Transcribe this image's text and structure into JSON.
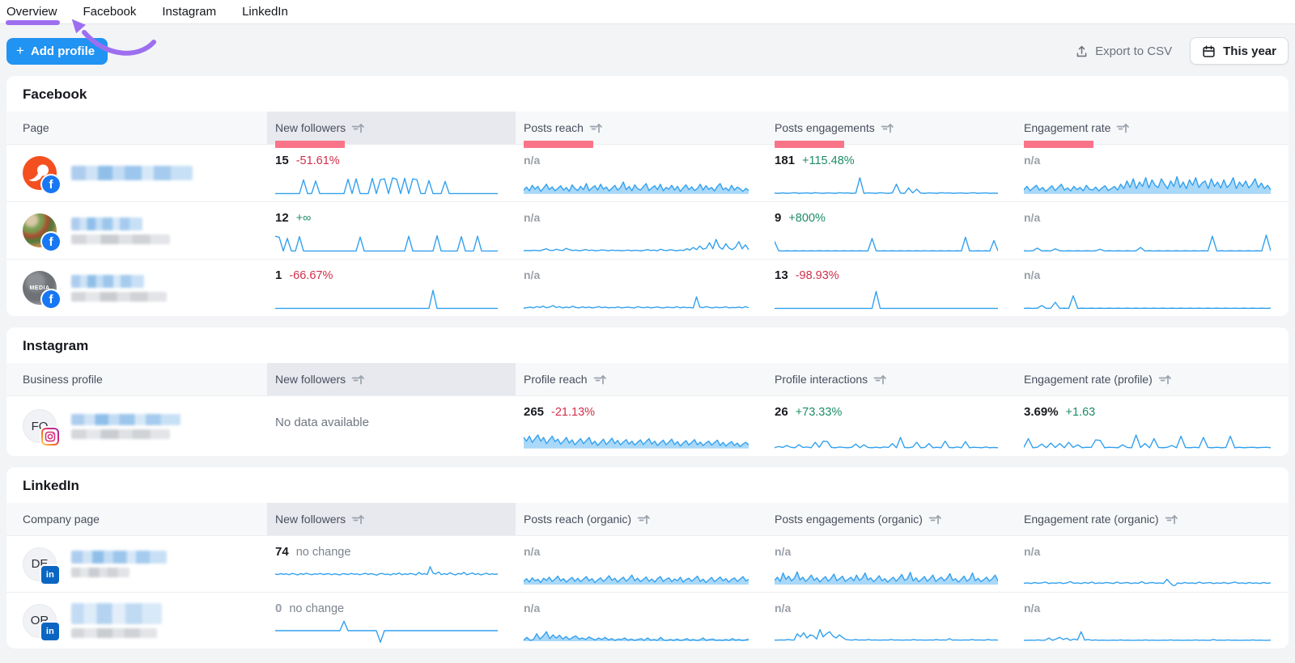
{
  "tabs": [
    {
      "label": "Overview"
    },
    {
      "label": "Facebook"
    },
    {
      "label": "Instagram"
    },
    {
      "label": "LinkedIn"
    }
  ],
  "annotation": {
    "color": "#9d6ff0",
    "target": "Overview"
  },
  "toolbar": {
    "plus": "+",
    "add_profile_label": "Add profile",
    "export_label": "Export to CSV",
    "period_label": "This year"
  },
  "colors": {
    "spark": "#33a1ef",
    "spark_fill": "rgba(51,161,239,0.42)",
    "positive": "#1d8c66",
    "negative": "#d12e4b",
    "muted": "#7d838d",
    "highlight_bar": "#fa7489",
    "accent_blue": "#2193f2"
  },
  "sections": [
    {
      "title": "Facebook",
      "entity_header": "Page",
      "selected_column": "New followers",
      "columns": [
        {
          "label": "New followers"
        },
        {
          "label": "Posts reach"
        },
        {
          "label": "Posts engagements"
        },
        {
          "label": "Engagement rate"
        }
      ],
      "rows": [
        {
          "metrics": [
            {
              "value": "15",
              "delta": "-51.61%"
            },
            {
              "value": "n/a",
              "delta": ""
            },
            {
              "value": "181",
              "delta": "+115.48%"
            },
            {
              "value": "n/a",
              "delta": ""
            }
          ]
        },
        {
          "metrics": [
            {
              "value": "12",
              "delta": "+∞"
            },
            {
              "value": "n/a",
              "delta": ""
            },
            {
              "value": "9",
              "delta": "+800%"
            },
            {
              "value": "n/a",
              "delta": ""
            }
          ]
        },
        {
          "metrics": [
            {
              "value": "1",
              "delta": "-66.67%"
            },
            {
              "value": "n/a",
              "delta": ""
            },
            {
              "value": "13",
              "delta": "-98.93%"
            },
            {
              "value": "n/a",
              "delta": ""
            }
          ]
        }
      ]
    },
    {
      "title": "Instagram",
      "entity_header": "Business profile",
      "selected_column": "New followers",
      "columns": [
        {
          "label": "New followers"
        },
        {
          "label": "Profile reach"
        },
        {
          "label": "Profile interactions"
        },
        {
          "label": "Engagement rate (profile)"
        }
      ],
      "rows": [
        {
          "metrics": [
            {
              "value": "No data available",
              "delta": ""
            },
            {
              "value": "265",
              "delta": "-21.13%"
            },
            {
              "value": "26",
              "delta": "+73.33%"
            },
            {
              "value": "3.69%",
              "delta": "+1.63"
            }
          ]
        }
      ]
    },
    {
      "title": "LinkedIn",
      "entity_header": "Company page",
      "selected_column": "New followers",
      "columns": [
        {
          "label": "New followers"
        },
        {
          "label": "Posts reach (organic)"
        },
        {
          "label": "Posts engagements (organic)"
        },
        {
          "label": "Engagement rate (organic)"
        }
      ],
      "rows": [
        {
          "metrics": [
            {
              "value": "74",
              "delta": "no change"
            },
            {
              "value": "n/a",
              "delta": ""
            },
            {
              "value": "n/a",
              "delta": ""
            },
            {
              "value": "n/a",
              "delta": ""
            }
          ]
        },
        {
          "metrics": [
            {
              "value": "0",
              "delta": "no change"
            },
            {
              "value": "n/a",
              "delta": ""
            },
            {
              "value": "n/a",
              "delta": ""
            },
            {
              "value": "n/a",
              "delta": ""
            }
          ]
        }
      ]
    }
  ],
  "sparks": {
    "fb1_nf": [
      2,
      2,
      2,
      2,
      2,
      2,
      2,
      65,
      2,
      2,
      60,
      2,
      2,
      2,
      2,
      2,
      2,
      2,
      68,
      2,
      70,
      2,
      2,
      2,
      72,
      2,
      66,
      70,
      2,
      74,
      68,
      2,
      72,
      2,
      70,
      66,
      2,
      2,
      62,
      2,
      2,
      2,
      58,
      2,
      2,
      2,
      2,
      2,
      2,
      2,
      2,
      2,
      2,
      2,
      2,
      2
    ],
    "fb1_reach": [
      18,
      32,
      15,
      40,
      22,
      35,
      12,
      28,
      45,
      20,
      33,
      15,
      25,
      38,
      18,
      30,
      12,
      42,
      25,
      16,
      35,
      20,
      48,
      15,
      28,
      38,
      18,
      45,
      22,
      32,
      14,
      26,
      40,
      18,
      30,
      55,
      20,
      35,
      15,
      42,
      25,
      18,
      33,
      48,
      16,
      28,
      38,
      20,
      45,
      15,
      30,
      22,
      40,
      18,
      35,
      12,
      28,
      42,
      20,
      33,
      16,
      25,
      45,
      18,
      38,
      22,
      30,
      14,
      35,
      48,
      20,
      28,
      15,
      40,
      18,
      32,
      24,
      12,
      26,
      16
    ],
    "fb1_eng": [
      4,
      3,
      5,
      3,
      4,
      6,
      3,
      4,
      5,
      3,
      6,
      4,
      3,
      5,
      4,
      3,
      6,
      4,
      5,
      3,
      4,
      75,
      3,
      5,
      4,
      3,
      6,
      4,
      3,
      5,
      45,
      4,
      3,
      28,
      5,
      22,
      4,
      3,
      5,
      4,
      3,
      6,
      4,
      5,
      3,
      4,
      5,
      3,
      4,
      6,
      3,
      4,
      5,
      3,
      4,
      3
    ],
    "fb1_rate": [
      20,
      35,
      15,
      28,
      40,
      18,
      30,
      12,
      25,
      38,
      16,
      30,
      45,
      18,
      28,
      14,
      35,
      20,
      30,
      15,
      40,
      22,
      18,
      32,
      14,
      28,
      38,
      16,
      25,
      35,
      18,
      45,
      25,
      60,
      30,
      70,
      25,
      55,
      35,
      75,
      28,
      65,
      40,
      30,
      70,
      45,
      25,
      60,
      35,
      80,
      30,
      55,
      25,
      65,
      40,
      75,
      30,
      50,
      60,
      25,
      70,
      35,
      55,
      28,
      65,
      30,
      45,
      75,
      25,
      55,
      35,
      60,
      28,
      45,
      70,
      30,
      50,
      25,
      40,
      20
    ],
    "fb2_nf": [
      70,
      65,
      2,
      60,
      2,
      2,
      68,
      2,
      2,
      2,
      2,
      2,
      2,
      2,
      2,
      2,
      2,
      2,
      2,
      2,
      2,
      66,
      2,
      2,
      2,
      2,
      2,
      2,
      2,
      2,
      2,
      2,
      2,
      70,
      2,
      2,
      2,
      2,
      2,
      2,
      72,
      2,
      2,
      2,
      2,
      2,
      68,
      2,
      2,
      2,
      70,
      2,
      2,
      2,
      2,
      2
    ],
    "fb2_reach": [
      3,
      4,
      3,
      5,
      4,
      3,
      8,
      12,
      5,
      4,
      10,
      6,
      4,
      14,
      8,
      4,
      6,
      3,
      5,
      9,
      4,
      6,
      3,
      4,
      7,
      5,
      3,
      6,
      4,
      5,
      3,
      4,
      6,
      3,
      5,
      4,
      3,
      5,
      8,
      4,
      6,
      3,
      10,
      5,
      4,
      8,
      5,
      3,
      6,
      4,
      12,
      6,
      18,
      8,
      25,
      10,
      15,
      40,
      12,
      55,
      20,
      10,
      35,
      15,
      8,
      20,
      45,
      12,
      30,
      8
    ],
    "fb2_eng": [
      45,
      3,
      2,
      3,
      2,
      3,
      2,
      3,
      2,
      3,
      2,
      3,
      2,
      3,
      2,
      3,
      2,
      3,
      2,
      3,
      2,
      3,
      2,
      3,
      60,
      3,
      2,
      3,
      2,
      3,
      2,
      3,
      2,
      3,
      2,
      3,
      2,
      3,
      2,
      3,
      2,
      3,
      2,
      3,
      2,
      3,
      2,
      65,
      3,
      2,
      3,
      2,
      3,
      2,
      50,
      3
    ],
    "fb2_rate": [
      3,
      2,
      3,
      15,
      2,
      3,
      2,
      12,
      3,
      2,
      3,
      2,
      3,
      2,
      3,
      2,
      3,
      10,
      2,
      3,
      2,
      3,
      2,
      3,
      2,
      3,
      18,
      2,
      3,
      2,
      3,
      2,
      3,
      2,
      3,
      2,
      3,
      2,
      3,
      2,
      3,
      2,
      70,
      2,
      3,
      2,
      3,
      2,
      3,
      2,
      3,
      2,
      3,
      2,
      75,
      3
    ],
    "fb3_nf": [
      2,
      2,
      2,
      2,
      2,
      2,
      2,
      2,
      2,
      2,
      2,
      2,
      2,
      2,
      2,
      2,
      2,
      2,
      2,
      2,
      2,
      2,
      2,
      2,
      2,
      2,
      2,
      2,
      2,
      2,
      2,
      2,
      2,
      2,
      2,
      2,
      2,
      2,
      2,
      85,
      2,
      2,
      2,
      2,
      2,
      2,
      2,
      2,
      2,
      2,
      2,
      2,
      2,
      2,
      2,
      2
    ],
    "fb3_reach": [
      3,
      5,
      8,
      4,
      10,
      6,
      12,
      5,
      8,
      15,
      6,
      10,
      4,
      8,
      5,
      12,
      6,
      4,
      9,
      5,
      8,
      4,
      6,
      10,
      5,
      8,
      4,
      6,
      5,
      9,
      4,
      6,
      8,
      5,
      4,
      10,
      6,
      5,
      8,
      4,
      6,
      9,
      5,
      4,
      8,
      6,
      5,
      10,
      4,
      8,
      5,
      6,
      4,
      55,
      8,
      5,
      10,
      6,
      4,
      8,
      5,
      6,
      9,
      4,
      6,
      5,
      8,
      4,
      10,
      5
    ],
    "fb3_eng": [
      2,
      2,
      2,
      2,
      2,
      2,
      2,
      2,
      2,
      2,
      2,
      2,
      2,
      2,
      2,
      2,
      2,
      2,
      2,
      2,
      2,
      2,
      2,
      2,
      2,
      80,
      2,
      2,
      2,
      2,
      2,
      2,
      2,
      2,
      2,
      2,
      2,
      2,
      2,
      2,
      2,
      2,
      2,
      2,
      2,
      2,
      2,
      2,
      2,
      2,
      2,
      2,
      2,
      2,
      2,
      2
    ],
    "fb3_rate": [
      2,
      3,
      2,
      3,
      15,
      2,
      3,
      30,
      2,
      3,
      2,
      60,
      2,
      3,
      2,
      3,
      2,
      3,
      2,
      3,
      2,
      3,
      2,
      3,
      2,
      3,
      2,
      3,
      2,
      3,
      2,
      3,
      2,
      3,
      2,
      3,
      2,
      3,
      2,
      3,
      2,
      3,
      2,
      3,
      2,
      3,
      2,
      3,
      2,
      3,
      2,
      3,
      2,
      3,
      2,
      3
    ],
    "ig_reach": [
      45,
      30,
      50,
      25,
      40,
      55,
      30,
      45,
      20,
      35,
      50,
      28,
      38,
      18,
      30,
      45,
      22,
      35,
      15,
      28,
      40,
      20,
      32,
      45,
      18,
      30,
      12,
      25,
      38,
      16,
      28,
      42,
      20,
      33,
      15,
      26,
      36,
      18,
      30,
      14,
      25,
      35,
      16,
      28,
      40,
      18,
      30,
      12,
      24,
      34,
      15,
      26,
      38,
      16,
      28,
      10,
      22,
      32,
      14,
      25,
      36,
      15,
      26,
      12,
      22,
      30,
      14,
      24,
      34,
      12,
      25,
      10,
      20,
      28,
      12,
      22,
      8,
      18,
      25,
      15
    ],
    "ig_inter": [
      3,
      8,
      4,
      12,
      5,
      3,
      15,
      4,
      6,
      3,
      25,
      5,
      30,
      28,
      4,
      3,
      6,
      4,
      3,
      5,
      18,
      3,
      15,
      4,
      3,
      5,
      3,
      6,
      4,
      20,
      3,
      45,
      4,
      3,
      6,
      25,
      3,
      4,
      20,
      3,
      5,
      3,
      30,
      4,
      3,
      6,
      3,
      28,
      3,
      5,
      4,
      3,
      6,
      3,
      4,
      3
    ],
    "ig_rate": [
      5,
      40,
      3,
      5,
      18,
      3,
      22,
      4,
      20,
      3,
      25,
      4,
      15,
      3,
      5,
      4,
      35,
      33,
      3,
      5,
      4,
      3,
      15,
      4,
      3,
      55,
      4,
      20,
      3,
      40,
      4,
      3,
      5,
      12,
      3,
      50,
      4,
      3,
      5,
      3,
      45,
      4,
      3,
      5,
      3,
      4,
      50,
      3,
      5,
      3,
      4,
      5,
      3,
      4,
      5,
      3
    ],
    "li1_nf": [
      50,
      48,
      52,
      49,
      51,
      47,
      53,
      50,
      46,
      52,
      48,
      54,
      50,
      47,
      51,
      49,
      53,
      48,
      50,
      52,
      47,
      51,
      49,
      46,
      52,
      50,
      48,
      53,
      49,
      51,
      47,
      50,
      54,
      48,
      52,
      49,
      45,
      51,
      53,
      48,
      50,
      46,
      52,
      49,
      55,
      47,
      51,
      48,
      53,
      50,
      46,
      58,
      49,
      52,
      48,
      85,
      55,
      50,
      60,
      47,
      52,
      48,
      56,
      50,
      46,
      53,
      49,
      58,
      47,
      51,
      55,
      48,
      52,
      46,
      50,
      54,
      48,
      51,
      49,
      50
    ],
    "li1_reach": [
      15,
      28,
      12,
      32,
      18,
      25,
      10,
      30,
      20,
      35,
      15,
      26,
      40,
      18,
      28,
      12,
      24,
      34,
      16,
      30,
      14,
      26,
      38,
      18,
      28,
      10,
      22,
      32,
      15,
      27,
      42,
      20,
      30,
      12,
      25,
      35,
      16,
      28,
      45,
      18,
      30,
      14,
      24,
      36,
      16,
      26,
      12,
      28,
      38,
      15,
      25,
      32,
      14,
      27,
      18,
      35,
      12,
      24,
      30,
      16,
      28,
      40,
      15,
      26,
      10,
      22,
      34,
      14,
      25,
      36,
      18,
      28,
      12,
      24,
      32,
      15,
      26,
      38,
      18,
      24
    ],
    "li1_eng": [
      20,
      35,
      15,
      55,
      25,
      40,
      18,
      30,
      60,
      22,
      35,
      15,
      28,
      45,
      20,
      32,
      12,
      26,
      38,
      16,
      30,
      50,
      18,
      28,
      40,
      15,
      25,
      35,
      18,
      45,
      20,
      30,
      55,
      22,
      32,
      14,
      26,
      42,
      18,
      28,
      12,
      24,
      35,
      16,
      30,
      48,
      20,
      28,
      58,
      18,
      32,
      14,
      25,
      38,
      16,
      28,
      45,
      15,
      26,
      35,
      18,
      30,
      52,
      20,
      28,
      12,
      24,
      40,
      16,
      26,
      55,
      18,
      30,
      14,
      24,
      35,
      16,
      28,
      45,
      18
    ],
    "li1_rate": [
      6,
      8,
      5,
      10,
      6,
      8,
      12,
      5,
      8,
      6,
      10,
      5,
      8,
      14,
      6,
      8,
      5,
      10,
      6,
      12,
      5,
      8,
      6,
      10,
      8,
      5,
      12,
      6,
      8,
      10,
      5,
      8,
      6,
      14,
      5,
      8,
      10,
      6,
      8,
      5,
      25,
      6,
      -8,
      8,
      5,
      10,
      6,
      8,
      5,
      12,
      6,
      8,
      10,
      5,
      8,
      6,
      10,
      5,
      8,
      12,
      6,
      8,
      5,
      10,
      6,
      8,
      5,
      10,
      6,
      8
    ],
    "li2_nf": [
      50,
      50,
      50,
      50,
      50,
      50,
      50,
      50,
      50,
      50,
      50,
      50,
      50,
      50,
      50,
      50,
      50,
      95,
      50,
      50,
      50,
      50,
      50,
      50,
      50,
      50,
      -5,
      50,
      50,
      50,
      50,
      50,
      50,
      50,
      50,
      50,
      50,
      50,
      50,
      50,
      50,
      50,
      50,
      50,
      50,
      50,
      50,
      50,
      50,
      50,
      50,
      50,
      50,
      50,
      50,
      50
    ],
    "li2_reach": [
      5,
      18,
      4,
      8,
      35,
      10,
      25,
      45,
      12,
      30,
      15,
      28,
      10,
      22,
      8,
      18,
      25,
      10,
      15,
      8,
      20,
      12,
      6,
      15,
      8,
      18,
      6,
      12,
      4,
      10,
      8,
      15,
      5,
      10,
      4,
      8,
      12,
      4,
      15,
      5,
      8,
      4,
      18,
      5,
      4,
      8,
      4,
      10,
      4,
      6,
      12,
      4,
      8,
      4,
      6,
      15,
      4,
      8,
      10,
      4,
      6,
      4,
      8,
      4,
      12,
      5,
      8,
      4,
      6,
      10
    ],
    "li2_eng": [
      5,
      5,
      6,
      5,
      8,
      6,
      5,
      35,
      20,
      40,
      15,
      30,
      25,
      10,
      55,
      20,
      35,
      45,
      25,
      15,
      30,
      18,
      8,
      6,
      5,
      8,
      5,
      6,
      5,
      8,
      5,
      6,
      5,
      5,
      6,
      5,
      8,
      5,
      6,
      5,
      5,
      6,
      5,
      8,
      5,
      6,
      5,
      5,
      6,
      5,
      8,
      5,
      6,
      5,
      12,
      5,
      6,
      5,
      5,
      6,
      5,
      8,
      5,
      6,
      5,
      5,
      8,
      5,
      6,
      5
    ],
    "li2_rate": [
      4,
      4,
      5,
      4,
      6,
      4,
      5,
      15,
      4,
      10,
      18,
      8,
      14,
      4,
      10,
      6,
      45,
      5,
      8,
      4,
      6,
      4,
      5,
      4,
      4,
      5,
      4,
      6,
      4,
      5,
      4,
      4,
      5,
      4,
      6,
      4,
      5,
      4,
      4,
      5,
      4,
      6,
      4,
      5,
      4,
      4,
      5,
      4,
      6,
      4,
      5,
      4,
      4,
      8,
      4,
      5,
      4,
      6,
      4,
      5,
      4,
      4,
      5,
      4,
      6,
      4,
      5,
      4,
      4,
      5
    ]
  }
}
